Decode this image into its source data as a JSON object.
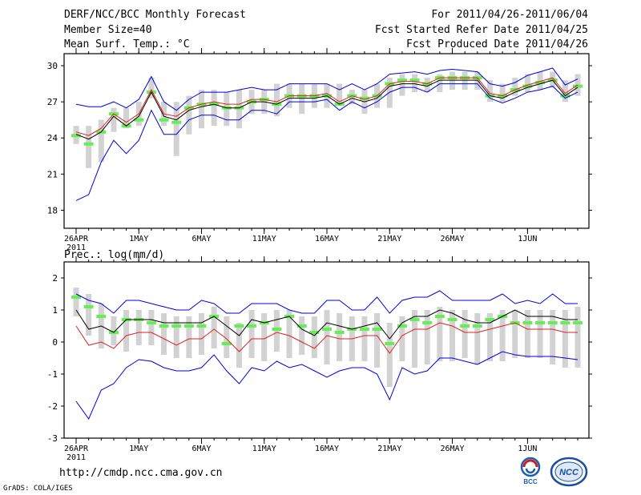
{
  "header": {
    "title": "DERF/NCC/BCC Monthly Forecast",
    "member_size": "Member Size=40",
    "variable": "Mean Surf. Temp.: °C",
    "period": "For 2011/04/26-2011/06/04",
    "start_date": "Fcst Started Refer Date 2011/04/25",
    "produced_date": "Fcst Produced Date 2011/04/26"
  },
  "footer": {
    "url": "http://cmdp.ncc.cma.gov.cn",
    "credit": "GrADS: COLA/IGES",
    "logo_left_text": "BCC",
    "logo_right_text": "NCC"
  },
  "colors": {
    "ensemble_bar": "#d2d2d2",
    "observed_mark": "#66ee55",
    "mean_line": "#000000",
    "median_line": "#e02020",
    "spread_line": "#0000dd"
  },
  "chart_data": [
    {
      "type": "line",
      "title": "",
      "ylabel": "Mean Surf. Temp.: °C",
      "ylim": [
        16.5,
        31
      ],
      "yticks": [
        18,
        21,
        24,
        27,
        30
      ],
      "xlabels": [
        {
          "day": 0,
          "label": "26APR"
        },
        {
          "day": 5,
          "label": "1MAY"
        },
        {
          "day": 10,
          "label": "6MAY"
        },
        {
          "day": 15,
          "label": "11MAY"
        },
        {
          "day": 20,
          "label": "16MAY"
        },
        {
          "day": 25,
          "label": "21MAY"
        },
        {
          "day": 30,
          "label": "26MAY"
        },
        {
          "day": 36,
          "label": "1JUN"
        }
      ],
      "year_label": "2011",
      "box_low": [
        23.5,
        21.5,
        22.0,
        24.5,
        24.8,
        25.0,
        27.3,
        25.0,
        22.5,
        24.3,
        24.8,
        25.0,
        25.0,
        24.8,
        26.0,
        26.0,
        25.8,
        26.5,
        26.0,
        26.5,
        26.5,
        26.8,
        26.8,
        26.0,
        26.5,
        26.5,
        27.5,
        27.8,
        27.8,
        27.8,
        28.0,
        28.0,
        28.0,
        27.0,
        27.0,
        27.5,
        27.8,
        28.0,
        28.2,
        27.0,
        27.5
      ],
      "box_high": [
        25.0,
        25.0,
        25.5,
        26.5,
        26.5,
        27.0,
        29.0,
        27.0,
        27.0,
        27.5,
        28.0,
        28.0,
        27.8,
        28.0,
        28.0,
        28.0,
        28.5,
        28.5,
        28.5,
        28.5,
        28.5,
        28.5,
        28.0,
        28.0,
        28.5,
        29.0,
        29.3,
        29.3,
        29.0,
        29.3,
        29.5,
        29.5,
        29.5,
        28.8,
        28.5,
        29.0,
        29.3,
        29.5,
        29.5,
        28.8,
        29.3
      ],
      "observed": [
        24.2,
        23.5,
        24.5,
        26.0,
        25.0,
        25.5,
        27.8,
        25.5,
        25.3,
        26.5,
        26.8,
        26.8,
        26.5,
        26.5,
        27.0,
        27.2,
        26.8,
        27.5,
        27.5,
        27.5,
        27.5,
        26.8,
        27.5,
        27.3,
        27.5,
        28.5,
        28.8,
        28.8,
        28.5,
        29.0,
        29.0,
        29.0,
        29.0,
        27.5,
        27.5,
        28.0,
        28.3,
        28.6,
        28.8,
        27.5,
        28.3
      ],
      "series": [
        {
          "name": "ensemble mean",
          "color": "#000000",
          "values": [
            24.3,
            23.9,
            24.5,
            25.8,
            25.0,
            25.8,
            27.8,
            25.8,
            25.5,
            26.3,
            26.6,
            26.8,
            26.5,
            26.5,
            27.0,
            27.0,
            26.8,
            27.3,
            27.3,
            27.3,
            27.5,
            26.8,
            27.3,
            27.0,
            27.3,
            28.3,
            28.5,
            28.5,
            28.3,
            28.8,
            28.8,
            28.8,
            28.8,
            27.5,
            27.3,
            27.8,
            28.2,
            28.5,
            28.8,
            27.5,
            28.2
          ]
        },
        {
          "name": "ensemble median",
          "color": "#e02020",
          "values": [
            24.5,
            24.2,
            24.8,
            26.0,
            25.3,
            26.0,
            28.0,
            26.0,
            25.8,
            26.5,
            26.8,
            27.0,
            26.8,
            26.8,
            27.2,
            27.2,
            27.0,
            27.5,
            27.5,
            27.5,
            27.7,
            27.0,
            27.5,
            27.2,
            27.5,
            28.5,
            28.7,
            28.7,
            28.5,
            29.0,
            29.0,
            29.0,
            29.0,
            27.7,
            27.5,
            28.0,
            28.4,
            28.7,
            29.0,
            27.7,
            28.4
          ]
        },
        {
          "name": "lower bound",
          "color": "#0000dd",
          "values": [
            18.8,
            19.3,
            22.0,
            23.8,
            22.7,
            23.8,
            26.3,
            24.3,
            24.3,
            25.5,
            25.9,
            25.9,
            25.5,
            25.5,
            26.3,
            26.3,
            26.0,
            27.0,
            27.0,
            27.0,
            27.2,
            26.3,
            27.0,
            26.5,
            27.0,
            27.8,
            28.2,
            28.2,
            27.8,
            28.5,
            28.5,
            28.5,
            28.5,
            27.3,
            26.9,
            27.3,
            27.8,
            28.0,
            28.3,
            27.3,
            27.8
          ]
        },
        {
          "name": "upper bound",
          "color": "#0000dd",
          "values": [
            26.8,
            26.6,
            26.6,
            27.0,
            26.5,
            27.2,
            29.1,
            27.0,
            26.3,
            27.2,
            27.8,
            27.8,
            27.8,
            28.0,
            28.2,
            28.0,
            28.0,
            28.5,
            28.5,
            28.5,
            28.5,
            28.0,
            28.5,
            28.0,
            28.5,
            29.3,
            29.4,
            29.5,
            29.3,
            29.6,
            29.7,
            29.6,
            29.5,
            28.5,
            28.3,
            28.6,
            29.2,
            29.5,
            29.8,
            28.4,
            28.9
          ]
        }
      ]
    },
    {
      "type": "line",
      "title": "",
      "ylabel": "Prec.: log(mm/d)",
      "ylim": [
        -3,
        2.5
      ],
      "yticks": [
        -3,
        -2,
        -1,
        0,
        1,
        2
      ],
      "xlabels": [
        {
          "day": 0,
          "label": "26APR"
        },
        {
          "day": 5,
          "label": "1MAY"
        },
        {
          "day": 10,
          "label": "6MAY"
        },
        {
          "day": 15,
          "label": "11MAY"
        },
        {
          "day": 20,
          "label": "16MAY"
        },
        {
          "day": 25,
          "label": "21MAY"
        },
        {
          "day": 30,
          "label": "26MAY"
        },
        {
          "day": 36,
          "label": "1JUN"
        }
      ],
      "year_label": "2011",
      "box_low": [
        0.8,
        0.2,
        -0.2,
        -0.1,
        -0.3,
        -0.1,
        -0.1,
        -0.4,
        -0.5,
        -0.5,
        -0.4,
        -0.2,
        -0.5,
        -0.8,
        -0.5,
        -0.6,
        -0.3,
        -0.5,
        -0.4,
        -0.5,
        -0.7,
        -0.6,
        -0.6,
        -0.6,
        -0.8,
        -1.4,
        -0.6,
        -0.8,
        -0.7,
        -0.6,
        -0.6,
        -0.5,
        -0.7,
        -0.6,
        -0.6,
        -0.5,
        -0.5,
        -0.5,
        -0.7,
        -0.8,
        -0.8
      ],
      "box_high": [
        1.7,
        1.5,
        1.2,
        0.8,
        1.0,
        1.0,
        1.0,
        0.9,
        0.8,
        0.8,
        0.9,
        1.1,
        0.8,
        0.6,
        1.0,
        0.9,
        1.0,
        1.0,
        0.8,
        0.8,
        1.0,
        0.9,
        0.8,
        0.8,
        0.9,
        0.6,
        0.8,
        1.0,
        1.0,
        1.1,
        1.0,
        1.0,
        0.9,
        0.9,
        1.0,
        1.0,
        1.0,
        1.0,
        1.0,
        1.0,
        1.1
      ],
      "observed": [
        1.4,
        1.1,
        0.8,
        0.3,
        0.7,
        0.7,
        0.6,
        0.5,
        0.5,
        0.5,
        0.5,
        0.8,
        -0.05,
        0.5,
        0.5,
        0.6,
        0.4,
        0.8,
        0.5,
        0.3,
        0.4,
        0.3,
        0.4,
        0.4,
        0.4,
        -0.05,
        0.5,
        0.7,
        0.6,
        0.8,
        0.7,
        0.5,
        0.5,
        0.7,
        0.8,
        0.6,
        0.6,
        0.6,
        0.6,
        0.6,
        0.6
      ],
      "series": [
        {
          "name": "ensemble mean",
          "color": "#000000",
          "values": [
            1.0,
            0.4,
            0.5,
            0.3,
            0.7,
            0.7,
            0.7,
            0.6,
            0.6,
            0.6,
            0.6,
            0.8,
            0.5,
            0.2,
            0.7,
            0.6,
            0.7,
            0.8,
            0.4,
            0.2,
            0.6,
            0.5,
            0.4,
            0.5,
            0.6,
            0.1,
            0.6,
            0.8,
            0.8,
            1.0,
            0.9,
            0.7,
            0.6,
            0.6,
            0.8,
            1.0,
            0.8,
            0.8,
            0.8,
            0.7,
            0.7
          ]
        },
        {
          "name": "ensemble median",
          "color": "#e02020",
          "values": [
            0.5,
            -0.1,
            0.0,
            -0.2,
            0.2,
            0.3,
            0.3,
            0.1,
            -0.1,
            0.1,
            0.1,
            0.4,
            0.1,
            -0.3,
            0.1,
            0.1,
            0.3,
            0.2,
            0.0,
            -0.2,
            0.2,
            0.1,
            0.1,
            0.2,
            0.2,
            -0.35,
            0.2,
            0.4,
            0.4,
            0.6,
            0.5,
            0.3,
            0.3,
            0.4,
            0.5,
            0.6,
            0.4,
            0.4,
            0.4,
            0.3,
            0.3
          ]
        },
        {
          "name": "lower bound",
          "color": "#0000dd",
          "values": [
            -1.85,
            -2.4,
            -1.5,
            -1.3,
            -0.8,
            -0.55,
            -0.6,
            -0.8,
            -0.9,
            -0.9,
            -0.8,
            -0.4,
            -0.9,
            -1.3,
            -0.8,
            -0.9,
            -0.6,
            -0.8,
            -0.7,
            -0.9,
            -1.1,
            -0.9,
            -0.8,
            -0.8,
            -1.0,
            -1.8,
            -0.8,
            -1.0,
            -0.9,
            -0.5,
            -0.5,
            -0.6,
            -0.7,
            -0.5,
            -0.3,
            -0.4,
            -0.45,
            -0.45,
            -0.45,
            -0.5,
            -0.55
          ]
        },
        {
          "name": "upper bound",
          "color": "#0000dd",
          "values": [
            1.5,
            1.3,
            1.2,
            0.9,
            1.3,
            1.3,
            1.2,
            1.1,
            1.0,
            1.0,
            1.3,
            1.2,
            0.9,
            0.9,
            1.2,
            1.2,
            1.2,
            1.0,
            0.9,
            0.9,
            1.3,
            1.3,
            1.0,
            1.0,
            1.4,
            0.9,
            1.3,
            1.4,
            1.4,
            1.6,
            1.3,
            1.3,
            1.3,
            1.3,
            1.5,
            1.2,
            1.3,
            1.2,
            1.5,
            1.2,
            1.2
          ]
        }
      ]
    }
  ]
}
